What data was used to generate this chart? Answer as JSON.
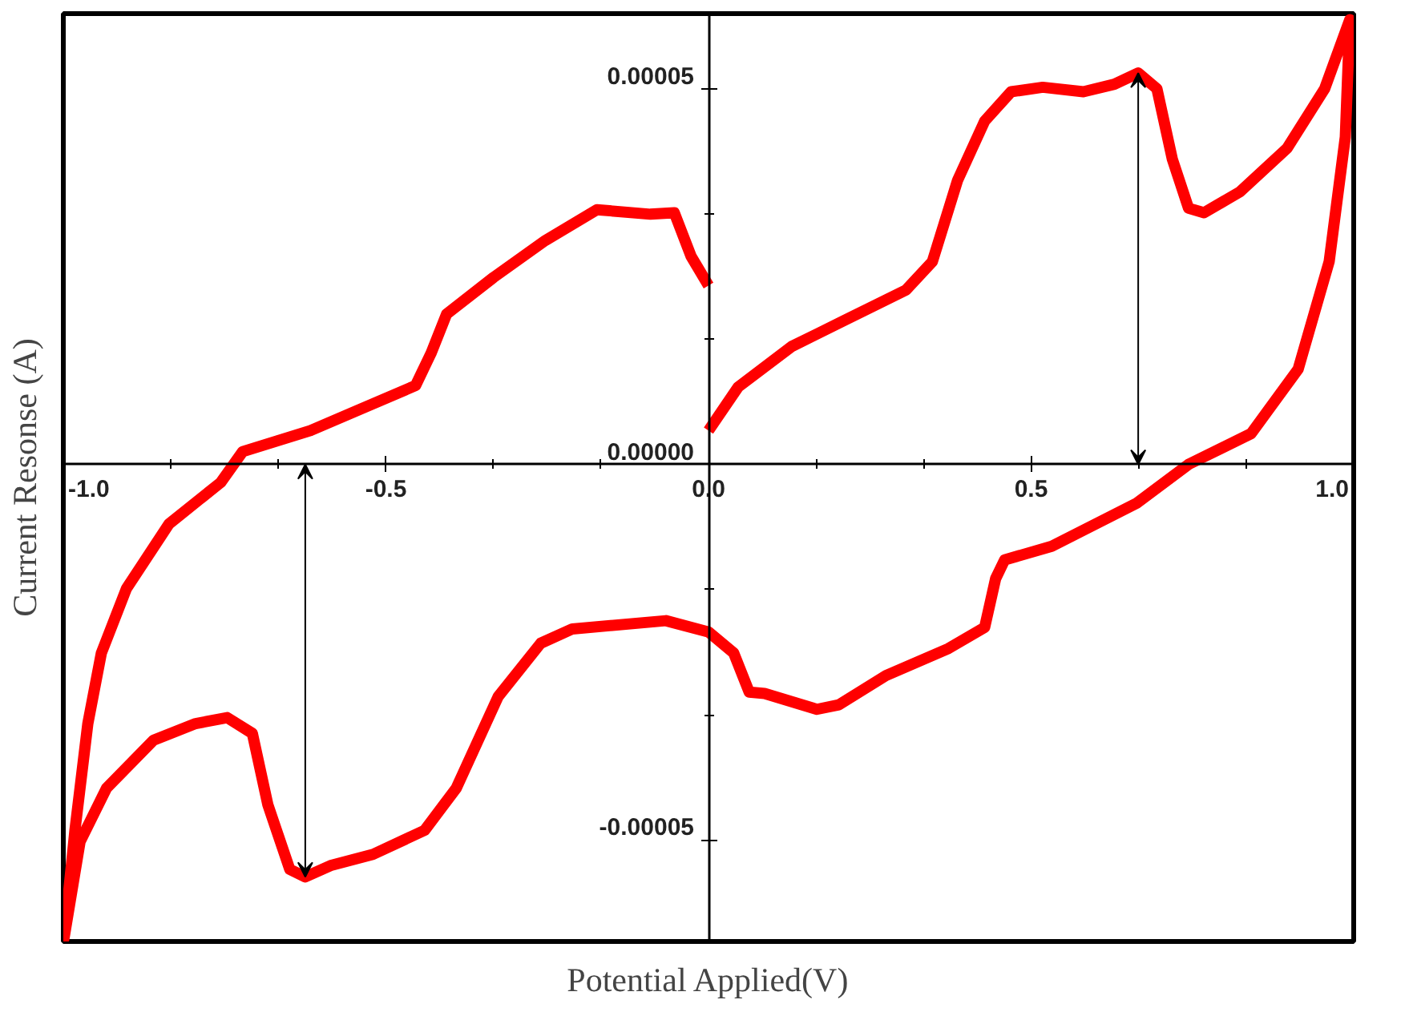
{
  "chart_data": {
    "type": "line",
    "xlabel": "Potential Applied(V)",
    "ylabel": "Current Resonse (A)",
    "x": [
      0,
      0.046,
      0.129,
      0.209,
      0.306,
      0.347,
      0.386,
      0.428,
      0.469,
      0.518,
      0.581,
      0.629,
      0.666,
      0.695,
      0.719,
      0.744,
      0.768,
      0.824,
      0.897,
      0.955,
      0.994,
      0.987,
      0.962,
      0.914,
      0.841,
      0.744,
      0.663,
      0.532,
      0.459,
      0.445,
      0.428,
      0.372,
      0.275,
      0.202,
      0.168,
      0.087,
      0.063,
      0.039,
      0,
      -0.066,
      -0.211,
      -0.26,
      -0.326,
      -0.391,
      -0.44,
      -0.52,
      -0.586,
      -0.625,
      -0.649,
      -0.683,
      -0.707,
      -0.746,
      -0.795,
      -0.86,
      -0.933,
      -0.974,
      -0.999,
      -0.982,
      -0.962,
      -0.941,
      -0.902,
      -0.836,
      -0.756,
      -0.722,
      -0.617,
      -0.454,
      -0.43,
      -0.406,
      -0.333,
      -0.253,
      -0.173,
      -0.09,
      -0.053,
      -0.027,
      0
    ],
    "series": [
      {
        "color": "#ff0000",
        "values": [
          4.5e-06,
          1.03e-05,
          1.57e-05,
          1.91e-05,
          2.32e-05,
          2.7e-05,
          3.78e-05,
          4.57e-05,
          4.96e-05,
          5.02e-05,
          4.96e-05,
          5.06e-05,
          5.21e-05,
          5e-05,
          4.06e-05,
          3.41e-05,
          3.35e-05,
          3.63e-05,
          4.21e-05,
          5e-05,
          5.92e-05,
          4.36e-05,
          2.7e-05,
          1.27e-05,
          4.1e-06,
          0,
          -5.2e-06,
          -1.09e-05,
          -1.27e-05,
          -1.52e-05,
          -2.17e-05,
          -2.45e-05,
          -2.81e-05,
          -3.2e-05,
          -3.26e-05,
          -3.05e-05,
          -3.03e-05,
          -2.51e-05,
          -2.23e-05,
          -2.08e-05,
          -2.19e-05,
          -2.38e-05,
          -3.09e-05,
          -4.31e-05,
          -4.87e-05,
          -5.19e-05,
          -5.34e-05,
          -5.49e-05,
          -5.39e-05,
          -4.53e-05,
          -3.58e-05,
          -3.37e-05,
          -3.45e-05,
          -3.67e-05,
          -4.31e-05,
          -5.02e-05,
          -6.31e-05,
          -4.87e-05,
          -3.45e-05,
          -2.51e-05,
          -1.65e-05,
          -7.9e-06,
          -2.4e-06,
          1.7e-06,
          4.5e-06,
          1.05e-05,
          1.48e-05,
          2e-05,
          2.49e-05,
          2.98e-05,
          3.39e-05,
          3.33e-05,
          3.35e-05,
          2.77e-05,
          2.38e-05
        ]
      }
    ],
    "xlim": [
      -1.0,
      1.0
    ],
    "ylim": [
      -6.35e-05,
      6e-05
    ],
    "xticks": [
      {
        "value": -1.0,
        "label": "-1.0"
      },
      {
        "value": -0.5,
        "label": "-0.5"
      },
      {
        "value": 0,
        "label": "0.0"
      },
      {
        "value": 0.5,
        "label": "0.5"
      },
      {
        "value": 1.0,
        "label": "1.0"
      }
    ],
    "yticks": [
      {
        "value": -5e-05,
        "label": "-0.00005"
      },
      {
        "value": 0,
        "label": "0.00000"
      },
      {
        "value": 5e-05,
        "label": "0.00005"
      }
    ],
    "grid": false,
    "line_style": "solid"
  }
}
